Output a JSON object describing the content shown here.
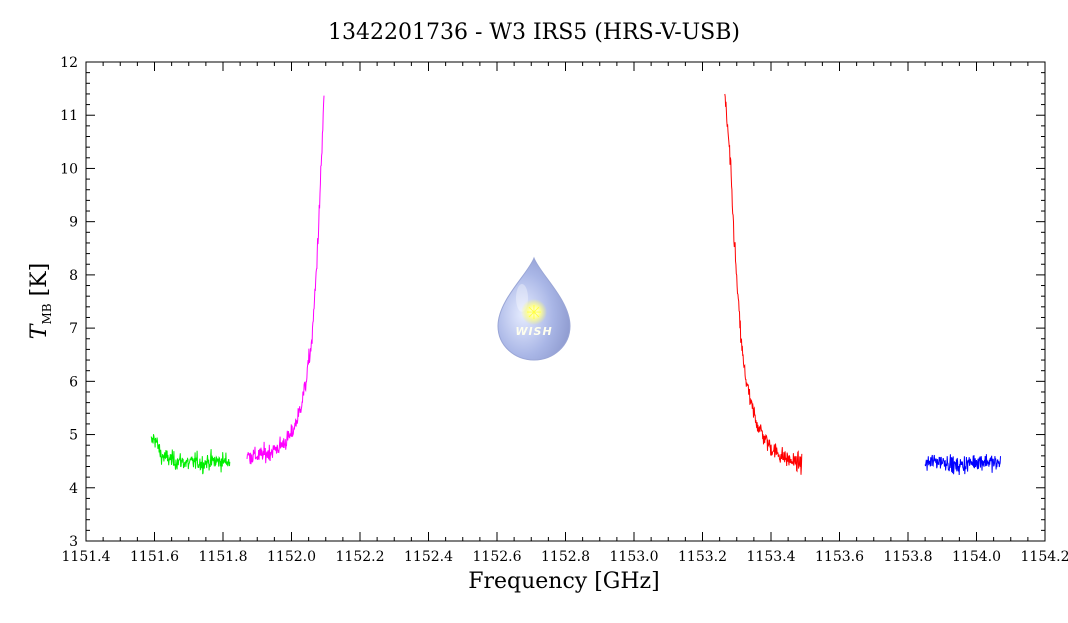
{
  "chart_data": {
    "type": "line",
    "title": "1342201736 - W3 IRS5 (HRS-V-USB)",
    "xlabel": "Frequency [GHz]",
    "ylabel": {
      "main": "T",
      "subscript": "MB",
      "unit": " [K]"
    },
    "xlim": [
      1151.4,
      1154.2
    ],
    "ylim": [
      3,
      12
    ],
    "x_ticks": [
      "1151.4",
      "1151.6",
      "1151.8",
      "1152.0",
      "1152.2",
      "1152.4",
      "1152.6",
      "1152.8",
      "1153.0",
      "1153.2",
      "1153.4",
      "1153.6",
      "1153.8",
      "1154.0",
      "1154.2"
    ],
    "y_ticks": [
      "3",
      "4",
      "5",
      "6",
      "7",
      "8",
      "9",
      "10",
      "11",
      "12"
    ],
    "grid": false,
    "series": [
      {
        "color": "#00ee00",
        "x": [
          1151.59,
          1151.6,
          1151.62,
          1151.64,
          1151.66,
          1151.68,
          1151.7,
          1151.72,
          1151.74,
          1151.76,
          1151.78,
          1151.8,
          1151.82
        ],
        "y": [
          4.85,
          4.95,
          4.6,
          4.55,
          4.5,
          4.5,
          4.45,
          4.5,
          4.45,
          4.5,
          4.5,
          4.5,
          4.5
        ]
      },
      {
        "color": "#ff00ff",
        "x": [
          1151.87,
          1151.9,
          1151.93,
          1151.96,
          1151.98,
          1152.0,
          1152.02,
          1152.04,
          1152.06,
          1152.07,
          1152.08,
          1152.09,
          1152.095
        ],
        "y": [
          4.6,
          4.6,
          4.65,
          4.75,
          4.85,
          5.0,
          5.35,
          5.9,
          6.8,
          7.8,
          9.0,
          10.5,
          11.45
        ]
      },
      {
        "color": "#ff0000",
        "x": [
          1153.265,
          1153.27,
          1153.28,
          1153.29,
          1153.3,
          1153.31,
          1153.32,
          1153.34,
          1153.36,
          1153.38,
          1153.4,
          1153.43,
          1153.46,
          1153.49
        ],
        "y": [
          11.3,
          11.0,
          10.2,
          9.0,
          7.9,
          7.0,
          6.3,
          5.6,
          5.2,
          4.95,
          4.75,
          4.6,
          4.5,
          4.45
        ]
      },
      {
        "color": "#0000ff",
        "x": [
          1153.85,
          1153.88,
          1153.91,
          1153.94,
          1153.97,
          1154.0,
          1154.03,
          1154.06,
          1154.07
        ],
        "y": [
          4.45,
          4.5,
          4.5,
          4.4,
          4.45,
          4.5,
          4.5,
          4.45,
          4.5
        ]
      }
    ]
  },
  "logo": {
    "text": "WISH"
  }
}
